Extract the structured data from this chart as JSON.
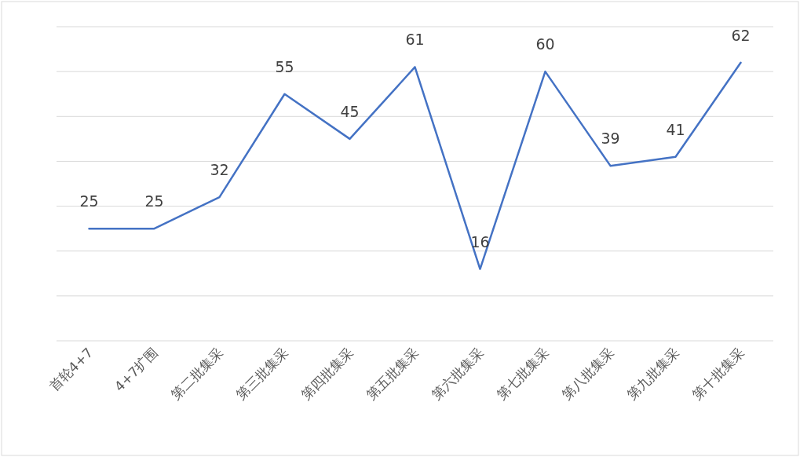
{
  "chart_data": {
    "type": "line",
    "categories": [
      "首轮4+7",
      "4+7扩围",
      "第二批集采",
      "第三批集采",
      "第四批集采",
      "第五批集采",
      "第六批集采",
      "第七批集采",
      "第八批集采",
      "第九批集采",
      "第十批集采"
    ],
    "values": [
      25,
      25,
      32,
      55,
      45,
      61,
      16,
      60,
      39,
      41,
      62
    ],
    "color": "#4472c4",
    "data_labels": true,
    "grid": "y",
    "tick_labels": "x",
    "marker": "none",
    "line_style": "solid",
    "ylim": [
      0,
      70
    ],
    "yticks": [
      {
        "value": 0,
        "label": null
      },
      {
        "value": 10,
        "label": null
      },
      {
        "value": 20,
        "label": null
      },
      {
        "value": 30,
        "label": null
      },
      {
        "value": 40,
        "label": null
      },
      {
        "value": 50,
        "label": null
      },
      {
        "value": 60,
        "label": null
      },
      {
        "value": 70,
        "label": null
      }
    ]
  }
}
